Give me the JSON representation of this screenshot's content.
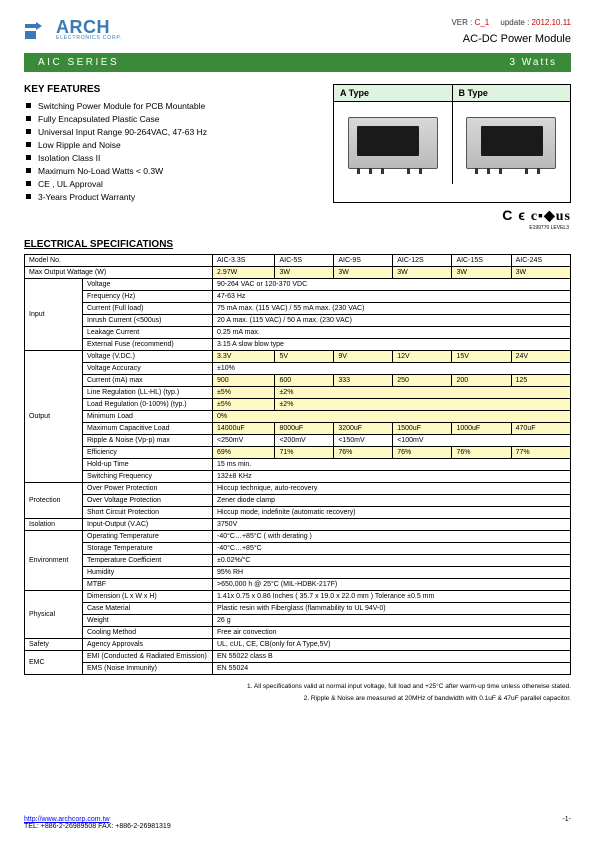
{
  "header": {
    "brand": "ARCH",
    "brand_sub": "ELECTRONICS CORP.",
    "ver_label": "VER :",
    "ver_value": "C_1",
    "update_label": "update :",
    "update_value": "2012.10.11",
    "tagline": "AC-DC Power Module"
  },
  "series_bar": {
    "left": "AIC  SERIES",
    "right": "3  Watts"
  },
  "features": {
    "title": "KEY FEATURES",
    "items": [
      "Switching Power Module for PCB Mountable",
      "Fully Encapsulated Plastic Case",
      "Universal Input Range 90-264VAC, 47-63 Hz",
      "Low Ripple and Noise",
      "Isolation Class II",
      "Maximum No-Load Watts < 0.3W",
      "CE , UL Approval",
      "3-Years Product Warranty"
    ]
  },
  "types": {
    "a": "A Type",
    "b": "B Type"
  },
  "cert": {
    "line": "C ϵ Ⓧ▪",
    "sub": "E199770\nLEVEL3"
  },
  "spec_title": "ELECTRICAL SPECIFICATIONS",
  "table": {
    "model_header": "Model No.",
    "models": [
      "AIC-3.3S",
      "AIC-5S",
      "AIC-9S",
      "AIC-12S",
      "AIC-15S",
      "AIC-24S"
    ],
    "max_w_label": "Max Output Wattage (W)",
    "max_w": [
      "2.97W",
      "3W",
      "3W",
      "3W",
      "3W",
      "3W"
    ],
    "groups": [
      {
        "label": "Input",
        "rows": [
          {
            "k": "Voltage",
            "span": "90-264 VAC or 120-370 VDC"
          },
          {
            "k": "Frequency (Hz)",
            "span": "47-63 Hz"
          },
          {
            "k": "Current (Full load)",
            "span": "75 mA max. (115 VAC) / 55 mA max. (230 VAC)"
          },
          {
            "k": "Inrush Current (<500us)",
            "span": "20 A max. (115 VAC) / 50 A max. (230 VAC)"
          },
          {
            "k": "Leakage Current",
            "span": "0.25 mA max."
          },
          {
            "k": "External Fuse (recommend)",
            "span": "3.15 A slow blow type"
          }
        ]
      },
      {
        "label": "Output",
        "rows": [
          {
            "k": "Voltage (V.DC.)",
            "v": [
              "3.3V",
              "5V",
              "9V",
              "12V",
              "15V",
              "24V"
            ],
            "yel": true
          },
          {
            "k": "Voltage Accuracy",
            "span": "±10%"
          },
          {
            "k": "Current (mA) max",
            "v": [
              "900",
              "600",
              "333",
              "250",
              "200",
              "125"
            ],
            "yel": true
          },
          {
            "k": "Line Regulation (LL-HL) (typ.)",
            "v": [
              "±5%",
              "±2%",
              "",
              "",
              "",
              ""
            ],
            "yel": true,
            "merge": [
              0,
              1
            ]
          },
          {
            "k": "Load Regulation (0-100%) (typ.)",
            "v": [
              "±5%",
              "±2%",
              "",
              "",
              "",
              ""
            ],
            "yel": true,
            "merge": [
              0,
              1
            ]
          },
          {
            "k": "Minimum Load",
            "v": [
              "0%",
              "",
              "",
              "",
              "",
              ""
            ],
            "yel": true,
            "merge": [
              0
            ]
          },
          {
            "k": "Maximum Capacitive Load",
            "v": [
              "14000uF",
              "8000uF",
              "3200uF",
              "1500uF",
              "1000uF",
              "470uF"
            ],
            "yel": true
          },
          {
            "k": "Ripple & Noise (Vp-p) max",
            "v": [
              "<250mV",
              "<200mV",
              "<150mV",
              "<100mV",
              "",
              ""
            ],
            "merge": [
              0,
              1,
              2,
              3
            ]
          },
          {
            "k": "Efficiency",
            "v": [
              "69%",
              "71%",
              "76%",
              "76%",
              "76%",
              "77%"
            ],
            "yel": true
          },
          {
            "k": "Hold-up Time",
            "span": "15 ms min."
          },
          {
            "k": "Switching Frequency",
            "span": "132±8 KHz"
          }
        ]
      },
      {
        "label": "Protection",
        "rows": [
          {
            "k": "Over Power Protection",
            "span": "Hiccup technique, auto-recovery"
          },
          {
            "k": "Over Voltage Protection",
            "span": "Zener diode clamp"
          },
          {
            "k": "Short Circuit Protection",
            "span": "Hiccup mode, indefinite (automatic recovery)"
          }
        ]
      },
      {
        "label": "Isolation",
        "rows": [
          {
            "k": "Input-Output (V.AC)",
            "span": "3750V"
          }
        ]
      },
      {
        "label": "Environment",
        "rows": [
          {
            "k": "Operating Temperature",
            "span": "-40°C…+85°C ( with derating )"
          },
          {
            "k": "Storage Temperature",
            "span": "-40°C…+85°C"
          },
          {
            "k": "Temperature Coefficient",
            "span": "±0.02%/°C"
          },
          {
            "k": "Humidity",
            "span": "95% RH"
          },
          {
            "k": "MTBF",
            "span": ">650,000 h @  25°C (MIL-HDBK-217F)"
          }
        ]
      },
      {
        "label": "Physical",
        "rows": [
          {
            "k": "Dimension (L x W x H)",
            "span": "1.41x 0.75 x 0.86 Inches    ( 35.7 x 19.0 x 22.0 mm ) Tolerance ±0.5 mm"
          },
          {
            "k": "Case Material",
            "span": "Plastic resin with Fiberglass (flammability to UL 94V-0)"
          },
          {
            "k": "Weight",
            "span": "26 g"
          },
          {
            "k": "Cooling Method",
            "span": "Free air convection"
          }
        ]
      },
      {
        "label": "Safety",
        "rows": [
          {
            "k": "Agency Approvals",
            "span": "UL, cUL, CE, CB(only for A Type,5V)"
          }
        ]
      },
      {
        "label": "EMC",
        "rows": [
          {
            "k": "EMI (Conducted & Radiated Emission)",
            "span": "EN 55022 class B"
          },
          {
            "k": "EMS (Noise Immunity)",
            "span": "EN 55024"
          }
        ]
      }
    ]
  },
  "notes": {
    "n1": "1. All specifications valid at normal input voltage, full load and +25°C after warm-up time unless otherwise stated.",
    "n2": "2. Ripple & Noise are measured at 20MHz of bandwidth with 0.1uF & 47uF parallel capacitor."
  },
  "footer": {
    "url": "http://www.archcorp.com.tw",
    "contact": "TEL: +886-2-26989508    FAX: +886-2-26981319",
    "page": "-1-"
  },
  "colors": {
    "brand": "#3a7ab8",
    "green_bar": "#3a8a3a",
    "type_head_bg": "#dff3df",
    "yellow": "#fff9c4",
    "red": "#c00"
  }
}
